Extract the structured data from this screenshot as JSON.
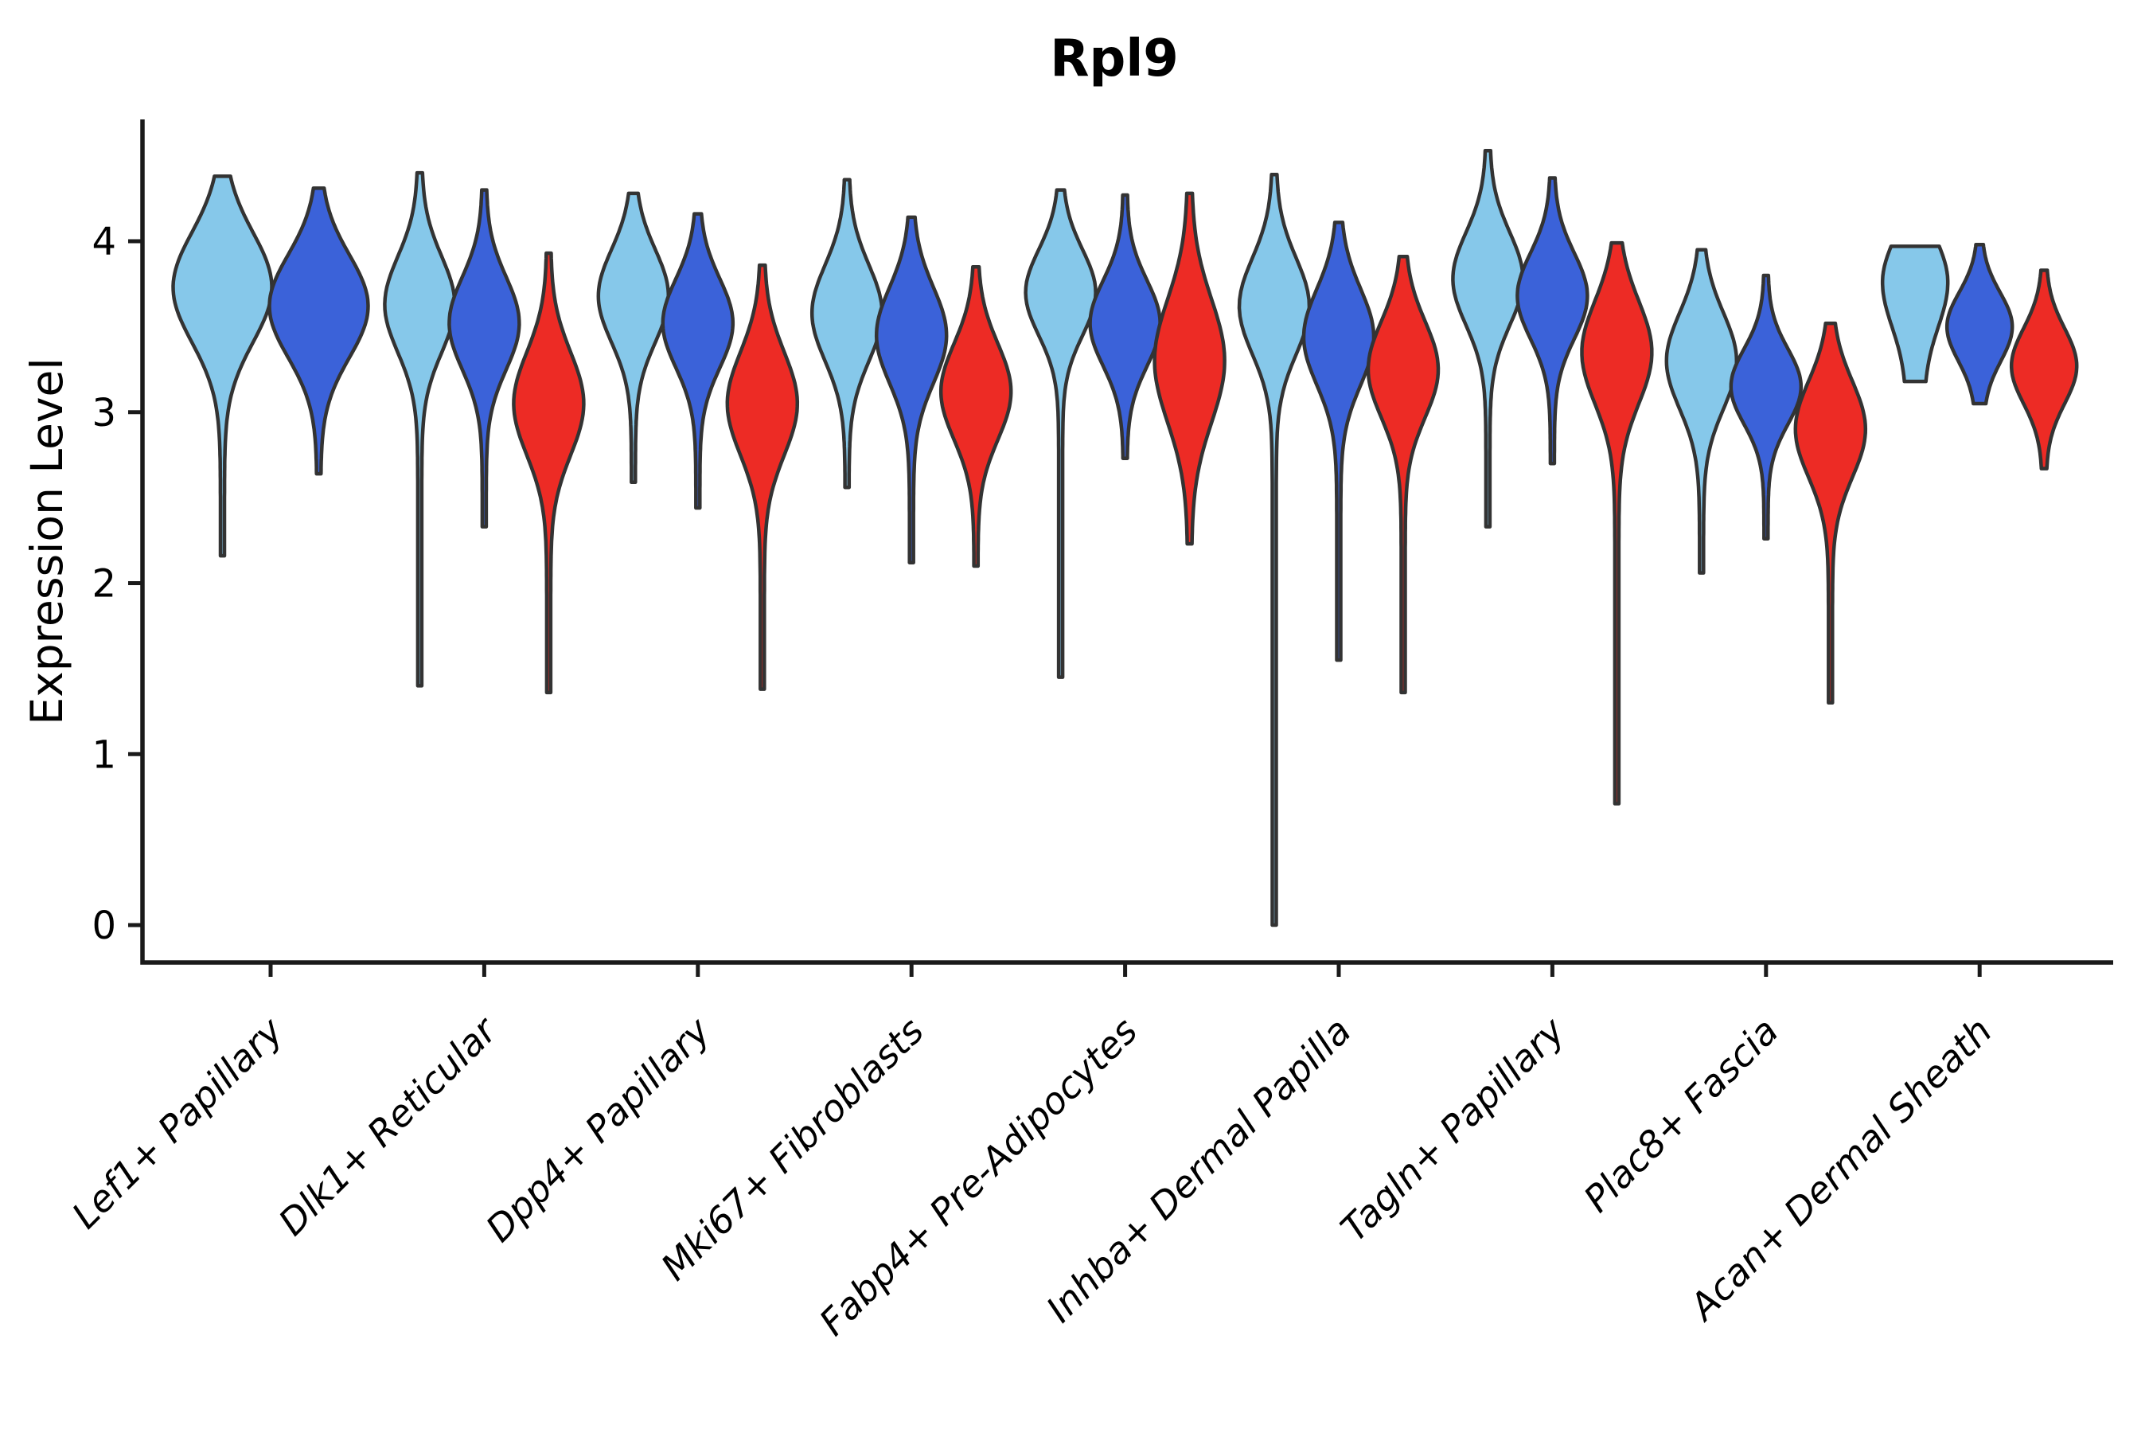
{
  "title": "Rpl9",
  "axes": {
    "ylabel": "Expression Level",
    "ytick_labels": [
      "0",
      "1",
      "2",
      "3",
      "4"
    ]
  },
  "colors": {
    "background": "#ffffff",
    "axis": "#1a1a1a",
    "text": "#000000",
    "violin_outline": "#333333"
  },
  "chart_data": {
    "type": "violin",
    "title": "Rpl9",
    "ylabel": "Expression Level",
    "ylim": [
      -0.25,
      4.75
    ],
    "yticks": [
      0,
      1,
      2,
      3,
      4
    ],
    "grid": false,
    "legend": "none",
    "categories": [
      "Lef1+ Papillary",
      "Dlk1+ Reticular",
      "Dpp4+ Papillary",
      "Mki67+ Fibroblasts",
      "Fabp4+ Pre-Adipocytes",
      "Inhba+ Dermal Papilla",
      "Tagln+ Papillary",
      "Plac8+ Fascia",
      "Acan+ Dermal Sheath"
    ],
    "series": [
      {
        "key": "light_blue",
        "color": "#86C8EA"
      },
      {
        "key": "royal_blue",
        "color": "#3B62D9"
      },
      {
        "key": "red",
        "color": "#ED2B25"
      }
    ],
    "violins": [
      {
        "category": 0,
        "series": "light_blue",
        "dx": -60.5,
        "min": 2.16,
        "max": 4.38,
        "peak": 3.73,
        "sigma": 0.32,
        "half_width": 62
      },
      {
        "category": 0,
        "series": "royal_blue",
        "dx": 60.5,
        "min": 2.64,
        "max": 4.31,
        "peak": 3.62,
        "sigma": 0.3,
        "half_width": 62
      },
      {
        "category": 1,
        "series": "light_blue",
        "dx": -81,
        "min": 1.4,
        "max": 4.4,
        "peak": 3.63,
        "sigma": 0.28,
        "half_width": 44
      },
      {
        "category": 1,
        "series": "royal_blue",
        "dx": 0,
        "min": 2.33,
        "max": 4.3,
        "peak": 3.52,
        "sigma": 0.27,
        "half_width": 44
      },
      {
        "category": 1,
        "series": "red",
        "dx": 81,
        "min": 1.36,
        "max": 3.93,
        "peak": 3.05,
        "sigma": 0.3,
        "half_width": 44
      },
      {
        "category": 2,
        "series": "light_blue",
        "dx": -81,
        "min": 2.59,
        "max": 4.28,
        "peak": 3.68,
        "sigma": 0.27,
        "half_width": 44
      },
      {
        "category": 2,
        "series": "royal_blue",
        "dx": 0,
        "min": 2.44,
        "max": 4.16,
        "peak": 3.52,
        "sigma": 0.26,
        "half_width": 44
      },
      {
        "category": 2,
        "series": "red",
        "dx": 81,
        "min": 1.38,
        "max": 3.86,
        "peak": 3.05,
        "sigma": 0.3,
        "half_width": 44
      },
      {
        "category": 3,
        "series": "light_blue",
        "dx": -81,
        "min": 2.56,
        "max": 4.36,
        "peak": 3.58,
        "sigma": 0.28,
        "half_width": 44
      },
      {
        "category": 3,
        "series": "royal_blue",
        "dx": 0,
        "min": 2.12,
        "max": 4.14,
        "peak": 3.45,
        "sigma": 0.28,
        "half_width": 44
      },
      {
        "category": 3,
        "series": "red",
        "dx": 81,
        "min": 2.1,
        "max": 3.85,
        "peak": 3.12,
        "sigma": 0.28,
        "half_width": 44
      },
      {
        "category": 4,
        "series": "light_blue",
        "dx": -81,
        "min": 1.45,
        "max": 4.3,
        "peak": 3.7,
        "sigma": 0.25,
        "half_width": 44
      },
      {
        "category": 4,
        "series": "royal_blue",
        "dx": 0,
        "min": 2.73,
        "max": 4.27,
        "peak": 3.52,
        "sigma": 0.25,
        "half_width": 44
      },
      {
        "category": 4,
        "series": "red",
        "dx": 81,
        "min": 2.23,
        "max": 4.28,
        "peak": 3.3,
        "sigma": 0.36,
        "half_width": 44
      },
      {
        "category": 5,
        "series": "light_blue",
        "dx": -81,
        "min": 0.0,
        "max": 4.39,
        "peak": 3.62,
        "sigma": 0.28,
        "half_width": 44
      },
      {
        "category": 5,
        "series": "royal_blue",
        "dx": 0,
        "min": 1.55,
        "max": 4.11,
        "peak": 3.44,
        "sigma": 0.28,
        "half_width": 44
      },
      {
        "category": 5,
        "series": "red",
        "dx": 81,
        "min": 1.36,
        "max": 3.91,
        "peak": 3.25,
        "sigma": 0.28,
        "half_width": 44
      },
      {
        "category": 6,
        "series": "light_blue",
        "dx": -81,
        "min": 2.33,
        "max": 4.53,
        "peak": 3.78,
        "sigma": 0.27,
        "half_width": 44
      },
      {
        "category": 6,
        "series": "royal_blue",
        "dx": 0,
        "min": 2.7,
        "max": 4.37,
        "peak": 3.68,
        "sigma": 0.25,
        "half_width": 44
      },
      {
        "category": 6,
        "series": "red",
        "dx": 81,
        "min": 0.71,
        "max": 3.99,
        "peak": 3.35,
        "sigma": 0.3,
        "half_width": 44
      },
      {
        "category": 7,
        "series": "light_blue",
        "dx": -81,
        "min": 2.06,
        "max": 3.95,
        "peak": 3.3,
        "sigma": 0.28,
        "half_width": 44
      },
      {
        "category": 7,
        "series": "royal_blue",
        "dx": 0,
        "min": 2.26,
        "max": 3.8,
        "peak": 3.15,
        "sigma": 0.22,
        "half_width": 44
      },
      {
        "category": 7,
        "series": "red",
        "dx": 81,
        "min": 1.3,
        "max": 3.52,
        "peak": 2.9,
        "sigma": 0.28,
        "half_width": 44
      },
      {
        "category": 8,
        "series": "light_blue",
        "dx": -81,
        "min": 3.18,
        "max": 3.97,
        "peak": 3.76,
        "sigma": 0.26,
        "half_width": 41,
        "tail_bottom": 11
      },
      {
        "category": 8,
        "series": "royal_blue",
        "dx": 0,
        "min": 3.05,
        "max": 3.98,
        "peak": 3.5,
        "sigma": 0.2,
        "half_width": 41,
        "tail_bottom": 5
      },
      {
        "category": 8,
        "series": "red",
        "dx": 81,
        "min": 2.67,
        "max": 3.83,
        "peak": 3.27,
        "sigma": 0.22,
        "half_width": 41
      }
    ]
  }
}
